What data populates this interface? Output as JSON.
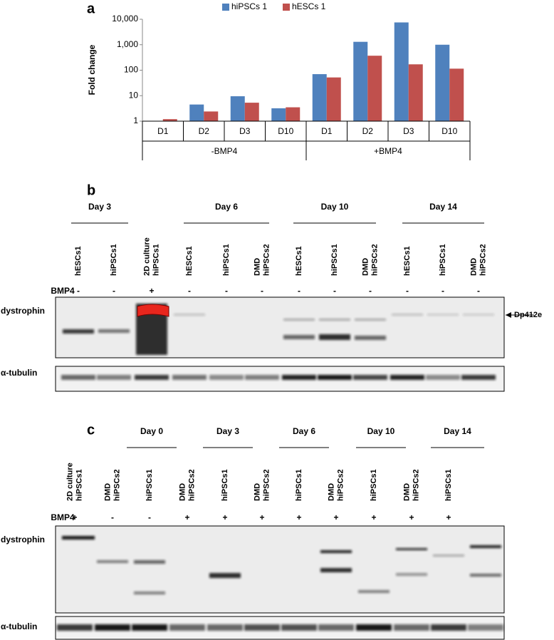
{
  "panel_labels": [
    "a",
    "b",
    "c"
  ],
  "chart_data": {
    "type": "bar",
    "y_label": "Fold change",
    "log_scale": true,
    "categories": [
      "D1",
      "D2",
      "D3",
      "D10",
      "D1",
      "D2",
      "D3",
      "D10"
    ],
    "groups": [
      "-BMP4",
      "+BMP4"
    ],
    "series": [
      {
        "name": "hiPSCs 1",
        "color": "#4f81bd",
        "values": [
          1,
          4.5,
          9.5,
          3.2,
          70,
          1300,
          7500,
          1000
        ]
      },
      {
        "name": "hESCs 1",
        "color": "#c0504d",
        "values": [
          1.2,
          2.4,
          5.3,
          3.5,
          52,
          370,
          170,
          115
        ]
      }
    ],
    "ylim": [
      1,
      10000
    ],
    "yticks": [
      1,
      10,
      100,
      {
        "value": 1000,
        "label": "1,000"
      },
      {
        "value": 10000,
        "label": "10,000"
      }
    ],
    "legend": "top"
  },
  "blot_b": {
    "days": [
      "Day 3",
      "Day 6",
      "Day 10",
      "Day 14"
    ],
    "lanes": [
      [
        "hESCs1"
      ],
      [
        "hiPSCs1"
      ],
      [
        "2D culture",
        "hiPSCs1"
      ],
      [
        "hESCs1"
      ],
      [
        "hiPSCs1"
      ],
      [
        "DMD",
        "hiPSCs2"
      ],
      [
        "hESCs1"
      ],
      [
        "hiPSCs1"
      ],
      [
        "DMD",
        "hiPSCs2"
      ],
      [
        "hESCs1"
      ],
      [
        "hiPSCs1"
      ],
      [
        "DMD",
        "hiPSCs2"
      ]
    ],
    "bmp4_label": "BMP4",
    "bmp4": [
      "-",
      "-",
      "+",
      "-",
      "-",
      "-",
      "-",
      "-",
      "-",
      "-",
      "-",
      "-"
    ],
    "rows": [
      "dystrophin",
      "α-tubulin"
    ],
    "marker": "Dp412e"
  },
  "blot_c": {
    "days": [
      "Day 0",
      "Day 3",
      "Day 6",
      "Day 10",
      "Day 14"
    ],
    "lanes": [
      [
        "2D culture",
        "hiPSCs1"
      ],
      [
        "DMD",
        "hiPSCs2"
      ],
      [
        "hiPSCs1"
      ],
      [
        "DMD",
        "hiPSCs2"
      ],
      [
        "hiPSCs1"
      ],
      [
        "DMD",
        "hiPSCs2"
      ],
      [
        "hiPSCs1"
      ],
      [
        "DMD",
        "hiPSCs2"
      ],
      [
        "hiPSCs1"
      ],
      [
        "DMD",
        "hiPSCs2"
      ],
      [
        "hiPSCs1"
      ]
    ],
    "bmp4_label": "BMP4",
    "bmp4": [
      "+",
      "-",
      "-",
      "+",
      "+",
      "+",
      "+",
      "+",
      "+",
      "+",
      "+"
    ],
    "rows": [
      "dystrophin",
      "α-tubulin"
    ]
  }
}
